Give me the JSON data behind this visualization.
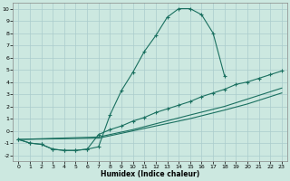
{
  "xlabel": "Humidex (Indice chaleur)",
  "background_color": "#cce8e0",
  "grid_color": "#aacccc",
  "line_color": "#1a7060",
  "xlim": [
    -0.5,
    23.5
  ],
  "ylim": [
    -2.5,
    10.5
  ],
  "xticks": [
    0,
    1,
    2,
    3,
    4,
    5,
    6,
    7,
    8,
    9,
    10,
    11,
    12,
    13,
    14,
    15,
    16,
    17,
    18,
    19,
    20,
    21,
    22,
    23
  ],
  "yticks": [
    -2,
    -1,
    0,
    1,
    2,
    3,
    4,
    5,
    6,
    7,
    8,
    9,
    10
  ],
  "curve1": [
    [
      0,
      -0.7
    ],
    [
      1,
      -1.0
    ],
    [
      2,
      -1.1
    ],
    [
      3,
      -1.5
    ],
    [
      4,
      -1.6
    ],
    [
      5,
      -1.6
    ],
    [
      6,
      -1.5
    ],
    [
      7,
      -1.3
    ],
    [
      8,
      1.3
    ],
    [
      9,
      3.3
    ],
    [
      10,
      4.8
    ],
    [
      11,
      6.5
    ],
    [
      12,
      7.8
    ],
    [
      13,
      9.3
    ],
    [
      14,
      10.0
    ],
    [
      15,
      10.0
    ],
    [
      16,
      9.5
    ],
    [
      17,
      8.0
    ],
    [
      18,
      4.5
    ]
  ],
  "curve2": [
    [
      0,
      -0.7
    ],
    [
      1,
      -1.0
    ],
    [
      2,
      -1.1
    ],
    [
      3,
      -1.5
    ],
    [
      4,
      -1.6
    ],
    [
      5,
      -1.6
    ],
    [
      6,
      -1.5
    ],
    [
      7,
      -0.3
    ],
    [
      8,
      0.1
    ],
    [
      9,
      0.4
    ],
    [
      10,
      0.8
    ],
    [
      11,
      1.1
    ],
    [
      12,
      1.5
    ],
    [
      13,
      1.8
    ],
    [
      14,
      2.1
    ],
    [
      15,
      2.4
    ],
    [
      16,
      2.8
    ],
    [
      17,
      3.1
    ],
    [
      18,
      3.4
    ],
    [
      19,
      3.8
    ],
    [
      20,
      4.0
    ],
    [
      21,
      4.3
    ],
    [
      22,
      4.6
    ],
    [
      23,
      4.9
    ]
  ],
  "line3": [
    [
      0,
      -0.7
    ],
    [
      7,
      -0.5
    ],
    [
      8,
      -0.3
    ],
    [
      9,
      -0.1
    ],
    [
      10,
      0.1
    ],
    [
      15,
      1.3
    ],
    [
      18,
      2.0
    ],
    [
      20,
      2.6
    ],
    [
      23,
      3.5
    ]
  ],
  "line4": [
    [
      0,
      -0.7
    ],
    [
      7,
      -0.6
    ],
    [
      8,
      -0.4
    ],
    [
      9,
      -0.2
    ],
    [
      10,
      0.0
    ],
    [
      15,
      1.0
    ],
    [
      18,
      1.7
    ],
    [
      20,
      2.2
    ],
    [
      23,
      3.1
    ]
  ]
}
